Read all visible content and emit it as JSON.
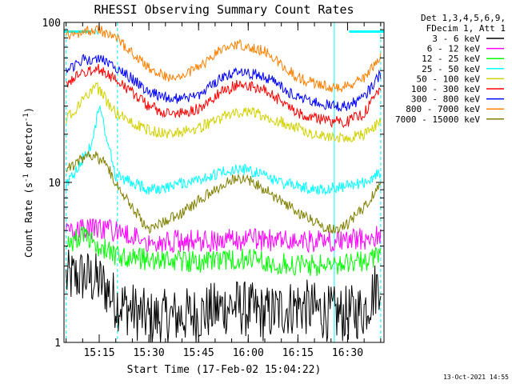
{
  "chart_data": {
    "type": "line",
    "title": "RHESSI Observing Summary Count Rates",
    "xlabel": "Start Time (17-Feb-02 15:04:22)",
    "ylabel": "Count Rate (s⁻¹ detector⁻¹)",
    "ylabel_parts": {
      "main": "Count Rate (s",
      "exp1": "-1",
      "mid": " detector",
      "exp2": "-1",
      "end": ")"
    },
    "y_scale": "log",
    "ylim": [
      1,
      100
    ],
    "ytick_labels": [
      "100",
      "10",
      "1"
    ],
    "xlim": [
      "15:04:22",
      "16:41:00"
    ],
    "xtick_labels": [
      "15:15",
      "15:30",
      "15:45",
      "16:00",
      "16:15",
      "16:30"
    ],
    "legend_header": [
      "Det 1,3,4,5,6,9,",
      "FDecim 1, Att 1"
    ],
    "legend_position": "top-right, outside plot",
    "timestamp": "13-Oct-2021 14:55",
    "flags": {
      "saa_label": "N",
      "bars": [
        [
          "15:04:22",
          "15:12:30"
        ],
        [
          "16:30:30",
          "16:41:00"
        ]
      ],
      "vertical_markers": [
        "15:05:00",
        "15:20:30",
        "16:26:00",
        "16:40:00"
      ]
    },
    "series": [
      {
        "name": "3 - 6 keV",
        "color": "#000000",
        "x": [
          "15:05",
          "15:10",
          "15:15",
          "15:17",
          "15:20",
          "15:30",
          "15:45",
          "15:55",
          "16:00",
          "16:05",
          "16:15",
          "16:25",
          "16:30",
          "16:35",
          "16:40"
        ],
        "y": [
          2.5,
          2.6,
          2.4,
          2.2,
          1.8,
          1.4,
          1.5,
          1.7,
          1.6,
          1.5,
          1.7,
          1.5,
          1.5,
          1.6,
          2.5
        ]
      },
      {
        "name": "6 - 12 keV",
        "color": "#ff00ff",
        "x": [
          "15:05",
          "15:15",
          "15:30",
          "15:45",
          "16:00",
          "16:15",
          "16:30",
          "16:40"
        ],
        "y": [
          5.0,
          5.2,
          4.3,
          4.3,
          4.4,
          4.3,
          4.3,
          4.6
        ]
      },
      {
        "name": "12 - 25 keV",
        "color": "#00ff00",
        "x": [
          "15:05",
          "15:10",
          "15:15",
          "15:20",
          "15:30",
          "15:45",
          "16:00",
          "16:15",
          "16:30",
          "16:40"
        ],
        "y": [
          4.2,
          4.6,
          4.0,
          3.4,
          3.3,
          3.2,
          3.3,
          3.0,
          3.1,
          3.4
        ]
      },
      {
        "name": "25 - 50 keV",
        "color": "#00ffff",
        "x": [
          "15:05",
          "15:10",
          "15:13",
          "15:15",
          "15:20",
          "15:30",
          "15:37",
          "15:45",
          "15:55",
          "16:00",
          "16:10",
          "16:20",
          "16:30",
          "16:35",
          "16:40"
        ],
        "y": [
          9.5,
          14,
          18,
          30,
          11,
          9.0,
          9.5,
          10.5,
          12.0,
          12.0,
          10.0,
          9.0,
          9.5,
          10.0,
          11.5
        ]
      },
      {
        "name": "50 - 100 keV",
        "color": "#d2d200",
        "x": [
          "15:05",
          "15:10",
          "15:14",
          "15:20",
          "15:30",
          "15:37",
          "15:45",
          "15:55",
          "16:00",
          "16:10",
          "16:20",
          "16:30",
          "16:35",
          "16:40"
        ],
        "y": [
          25,
          32,
          40,
          27,
          21,
          20,
          22,
          27,
          28,
          24,
          20,
          19,
          20,
          24
        ]
      },
      {
        "name": "100 - 300 keV",
        "color": "#ff0000",
        "x": [
          "15:05",
          "15:10",
          "15:15",
          "15:20",
          "15:30",
          "15:37",
          "15:45",
          "15:52",
          "15:57",
          "16:05",
          "16:15",
          "16:25",
          "16:30",
          "16:35",
          "16:40"
        ],
        "y": [
          40,
          49,
          51,
          44,
          30,
          26,
          29,
          37,
          41,
          38,
          27,
          24,
          24,
          27,
          39
        ]
      },
      {
        "name": "300 - 800 keV",
        "color": "#0000ff",
        "x": [
          "15:05",
          "15:10",
          "15:15",
          "15:20",
          "15:30",
          "15:37",
          "15:45",
          "15:52",
          "15:57",
          "16:05",
          "16:15",
          "16:25",
          "16:30",
          "16:35",
          "16:40"
        ],
        "y": [
          50,
          58,
          60,
          53,
          37,
          33,
          35,
          45,
          50,
          46,
          34,
          30,
          30,
          34,
          48
        ]
      },
      {
        "name": "800 - 7000 keV",
        "color": "#ff8000",
        "x": [
          "15:05",
          "15:10",
          "15:15",
          "15:20",
          "15:30",
          "15:37",
          "15:45",
          "15:52",
          "15:57",
          "16:05",
          "16:15",
          "16:25",
          "16:30",
          "16:35",
          "16:40"
        ],
        "y": [
          82,
          88,
          90,
          80,
          52,
          44,
          52,
          68,
          74,
          66,
          45,
          39,
          40,
          45,
          63
        ]
      },
      {
        "name": "7000 - 15000 keV",
        "color": "#808000",
        "x": [
          "15:05",
          "15:10",
          "15:13",
          "15:17",
          "15:20",
          "15:25",
          "15:30",
          "15:40",
          "15:50",
          "15:55",
          "16:00",
          "16:05",
          "16:15",
          "16:25",
          "16:30",
          "16:35",
          "16:40"
        ],
        "y": [
          12,
          14,
          15,
          13,
          10,
          7,
          5,
          6.5,
          9,
          10.5,
          10.5,
          9,
          6.5,
          5,
          5.5,
          7,
          10
        ]
      }
    ]
  }
}
